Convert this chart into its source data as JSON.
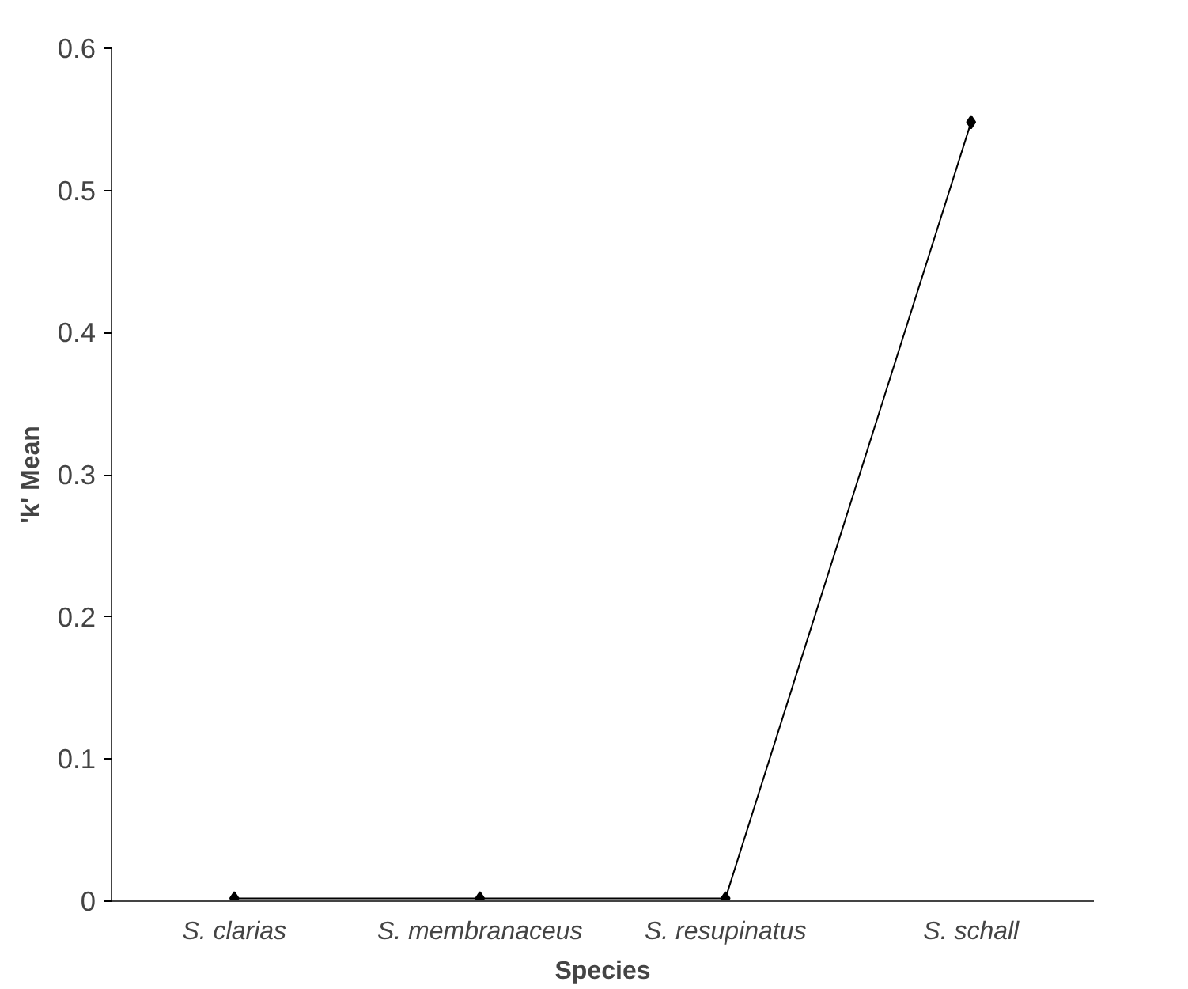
{
  "chart_data": {
    "type": "line",
    "xlabel": "Species",
    "ylabel": "'k' Mean",
    "categories": [
      "S. clarias",
      "S. membranaceus",
      "S. resupinatus",
      "S. schall"
    ],
    "series": [
      {
        "color": "#000000",
        "values": [
          0.002,
          0.002,
          0.002,
          0.548
        ]
      }
    ],
    "ylim": [
      0,
      0.6
    ],
    "yticks": [
      0,
      0.1,
      0.2,
      0.3,
      0.4,
      0.5,
      0.6
    ],
    "marker": "diamond",
    "line_style": "solid",
    "grid": false
  }
}
